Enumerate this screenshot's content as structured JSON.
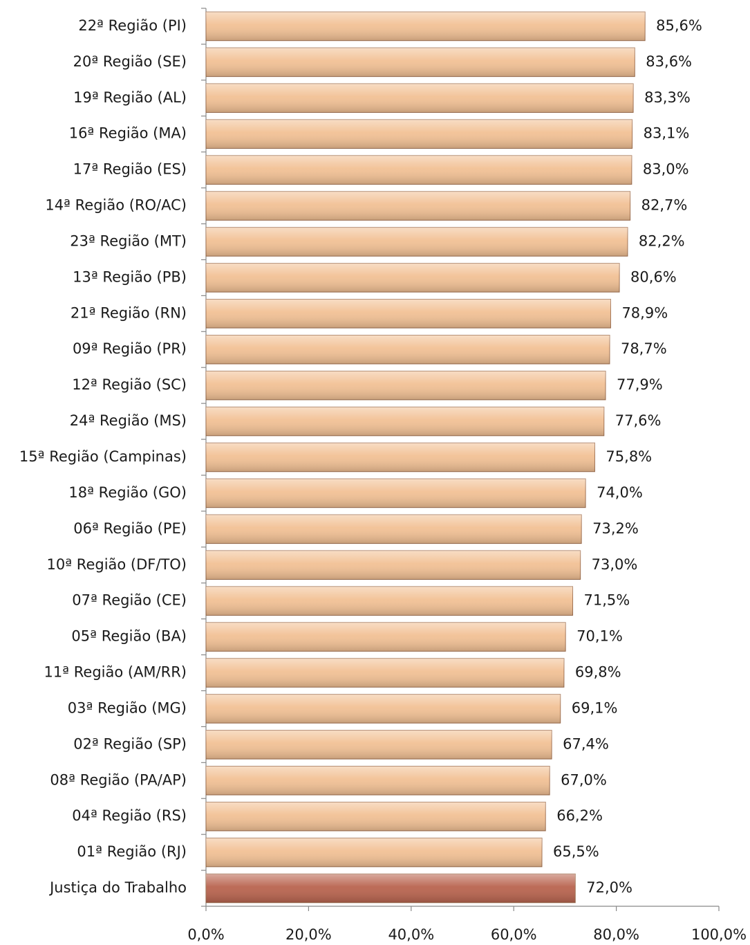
{
  "chart_data": {
    "type": "bar",
    "orientation": "horizontal",
    "categories": [
      "22ª Região (PI)",
      "20ª Região (SE)",
      "19ª Região (AL)",
      "16ª Região (MA)",
      "17ª Região (ES)",
      "14ª Região (RO/AC)",
      "23ª Região (MT)",
      "13ª Região (PB)",
      "21ª Região (RN)",
      "09ª Região (PR)",
      "12ª Região (SC)",
      "24ª Região (MS)",
      "15ª Região (Campinas)",
      "18ª Região (GO)",
      "06ª Região (PE)",
      "10ª Região (DF/TO)",
      "07ª Região (CE)",
      "05ª Região (BA)",
      "11ª Região (AM/RR)",
      "03ª Região (MG)",
      "02ª Região (SP)",
      "08ª Região (PA/AP)",
      "04ª Região (RS)",
      "01ª Região (RJ)",
      "Justiça do Trabalho"
    ],
    "values": [
      85.6,
      83.6,
      83.3,
      83.1,
      83.0,
      82.7,
      82.2,
      80.6,
      78.9,
      78.7,
      77.9,
      77.6,
      75.8,
      74.0,
      73.2,
      73.0,
      71.5,
      70.1,
      69.8,
      69.1,
      67.4,
      67.0,
      66.2,
      65.5,
      72.0
    ],
    "value_labels": [
      "85,6%",
      "83,6%",
      "83,3%",
      "83,1%",
      "83,0%",
      "82,7%",
      "82,2%",
      "80,6%",
      "78,9%",
      "78,7%",
      "77,9%",
      "77,6%",
      "75,8%",
      "74,0%",
      "73,2%",
      "73,0%",
      "71,5%",
      "70,1%",
      "69,8%",
      "69,1%",
      "67,4%",
      "67,0%",
      "66,2%",
      "65,5%",
      "72,0%"
    ],
    "colors": [
      "#f2c195",
      "#f2c195",
      "#f2c195",
      "#f2c195",
      "#f2c195",
      "#f2c195",
      "#f2c195",
      "#f2c195",
      "#f2c195",
      "#f2c195",
      "#f2c195",
      "#f2c195",
      "#f2c195",
      "#f2c195",
      "#f2c195",
      "#f2c195",
      "#f2c195",
      "#f2c195",
      "#f2c195",
      "#f2c195",
      "#f2c195",
      "#f2c195",
      "#f2c195",
      "#f2c195",
      "#b9644f"
    ],
    "xlim": [
      0,
      100
    ],
    "xticks": [
      {
        "value": 0,
        "label": "0,0%"
      },
      {
        "value": 20,
        "label": "20,0%"
      },
      {
        "value": 40,
        "label": "40,0%"
      },
      {
        "value": 60,
        "label": "60,0%"
      },
      {
        "value": 80,
        "label": "80,0%"
      },
      {
        "value": 100,
        "label": "100,0%"
      }
    ]
  }
}
